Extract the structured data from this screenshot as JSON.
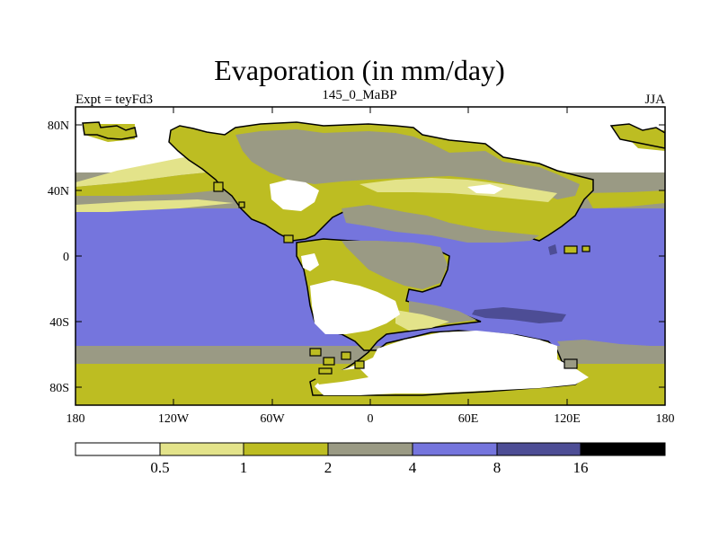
{
  "title": "Evaporation (in mm/day)",
  "experiment_label": "Expt = teyFd3",
  "period_label": "145_0_MaBP",
  "season_label": "JJA",
  "x_ticks": [
    "180",
    "120W",
    "60W",
    "0",
    "60E",
    "120E",
    "180"
  ],
  "y_ticks": [
    "80N",
    "40N",
    "0",
    "40S",
    "80S"
  ],
  "colorbar": {
    "labels": [
      "0.5",
      "1",
      "2",
      "4",
      "8",
      "16"
    ],
    "colors": [
      "#ffffff",
      "#e3e38a",
      "#bdbd22",
      "#9a9a84",
      "#7575dd",
      "#4d4d95",
      "#000000"
    ]
  },
  "colors": {
    "white": "#ffffff",
    "light_yellow": "#e3e38a",
    "olive": "#bdbd22",
    "gray": "#9a9a84",
    "blue": "#7575dd",
    "dark_blue": "#4d4d95"
  }
}
